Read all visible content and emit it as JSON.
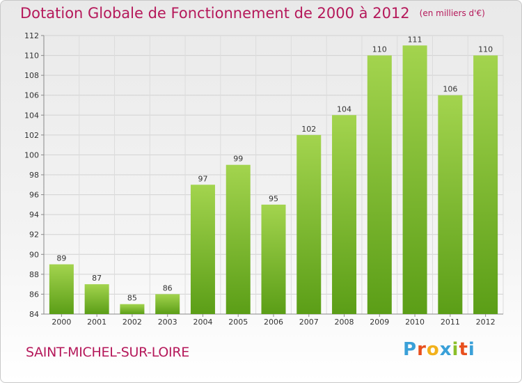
{
  "title": "Dotation Globale de Fonctionnement de 2000 à 2012",
  "unit": "(en milliers d'€)",
  "commune": "SAINT-MICHEL-SUR-LOIRE",
  "logo": {
    "letters": [
      "P",
      "r",
      "o",
      "x",
      "i",
      "t",
      "i"
    ],
    "colors": [
      "#3aa0d8",
      "#e8501e",
      "#f2b11b",
      "#3aa0d8",
      "#8bbf2a",
      "#e8501e",
      "#3aa0d8"
    ]
  },
  "colors": {
    "bar_top": "#a3d44e",
    "bar_bottom": "#5b9e17",
    "text_accent": "#b5185a"
  },
  "chart_data": {
    "type": "bar",
    "title": "Dotation Globale de Fonctionnement de 2000 à 2012",
    "subtitle": "(en milliers d'€)",
    "categories": [
      "2000",
      "2001",
      "2002",
      "2003",
      "2004",
      "2005",
      "2006",
      "2007",
      "2008",
      "2009",
      "2010",
      "2011",
      "2012"
    ],
    "values": [
      89,
      87,
      85,
      86,
      97,
      99,
      95,
      102,
      104,
      110,
      111,
      106,
      110
    ],
    "ylim": [
      84,
      112
    ],
    "yticks": [
      84,
      86,
      88,
      90,
      92,
      94,
      96,
      98,
      100,
      102,
      104,
      106,
      108,
      110,
      112
    ],
    "grid": true,
    "legend": "none"
  }
}
